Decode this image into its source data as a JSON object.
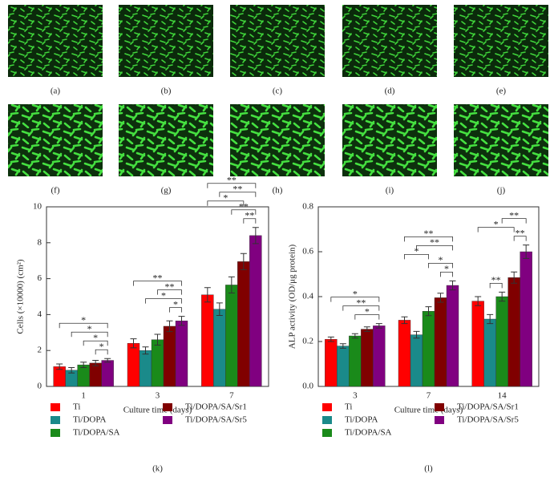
{
  "panels": [
    "(a)",
    "(b)",
    "(c)",
    "(d)",
    "(e)",
    "(f)",
    "(g)",
    "(h)",
    "(i)",
    "(j)"
  ],
  "chart_data": [
    {
      "type": "bar",
      "caption": "(k)",
      "ylabel": "Cells (×10000) (cm²)",
      "xlabel": "Culture time (days)",
      "categories": [
        "1",
        "3",
        "7"
      ],
      "ylim": [
        0,
        10
      ],
      "yticks": [
        0,
        2,
        4,
        6,
        8,
        10
      ],
      "series": [
        {
          "name": "Ti",
          "color": "#ff0000",
          "values": [
            1.1,
            2.4,
            5.1
          ],
          "errors": [
            0.15,
            0.25,
            0.4
          ]
        },
        {
          "name": "Ti/DOPA",
          "color": "#1a8a8a",
          "values": [
            0.9,
            2.0,
            4.3
          ],
          "errors": [
            0.15,
            0.2,
            0.35
          ]
        },
        {
          "name": "Ti/DOPA/SA",
          "color": "#1a8a1a",
          "values": [
            1.2,
            2.6,
            5.65
          ],
          "errors": [
            0.15,
            0.3,
            0.45
          ]
        },
        {
          "name": "Ti/DOPA/SA/Sr1",
          "color": "#800000",
          "values": [
            1.3,
            3.35,
            6.95
          ],
          "errors": [
            0.15,
            0.3,
            0.45
          ]
        },
        {
          "name": "Ti/DOPA/SA/Sr5",
          "color": "#800080",
          "values": [
            1.45,
            3.65,
            8.4
          ],
          "errors": [
            0.1,
            0.25,
            0.45
          ]
        }
      ],
      "significance": [
        {
          "category": "1",
          "between": [
            "Ti/DOPA/SA/Sr1",
            "Ti/DOPA/SA/Sr5"
          ],
          "label": "*"
        },
        {
          "category": "1",
          "between": [
            "Ti/DOPA/SA",
            "Ti/DOPA/SA/Sr5"
          ],
          "label": "*"
        },
        {
          "category": "1",
          "between": [
            "Ti/DOPA",
            "Ti/DOPA/SA/Sr5"
          ],
          "label": "*"
        },
        {
          "category": "1",
          "between": [
            "Ti",
            "Ti/DOPA/SA/Sr5"
          ],
          "label": "*"
        },
        {
          "category": "3",
          "between": [
            "Ti/DOPA/SA/Sr1",
            "Ti/DOPA/SA/Sr5"
          ],
          "label": "*"
        },
        {
          "category": "3",
          "between": [
            "Ti/DOPA",
            "Ti/DOPA/SA/Sr5"
          ],
          "label": "*"
        },
        {
          "category": "3",
          "between": [
            "Ti/DOPA/SA",
            "Ti/DOPA/SA/Sr5"
          ],
          "label": "**"
        },
        {
          "category": "3",
          "between": [
            "Ti",
            "Ti/DOPA/SA/Sr5"
          ],
          "label": "**"
        },
        {
          "category": "7",
          "between": [
            "Ti/DOPA/SA/Sr1",
            "Ti/DOPA/SA/Sr5"
          ],
          "label": "**"
        },
        {
          "category": "7",
          "between": [
            "Ti/DOPA/SA",
            "Ti/DOPA/SA/Sr5"
          ],
          "label": "**"
        },
        {
          "category": "7",
          "between": [
            "Ti",
            "Ti/DOPA/SA/Sr1"
          ],
          "label": "*"
        },
        {
          "category": "7",
          "between": [
            "Ti/DOPA",
            "Ti/DOPA/SA/Sr5"
          ],
          "label": "**"
        },
        {
          "category": "7",
          "between": [
            "Ti",
            "Ti/DOPA/SA/Sr5"
          ],
          "label": "**"
        }
      ]
    },
    {
      "type": "bar",
      "caption": "(l)",
      "ylabel": "ALP activity (OD/μg protein)",
      "xlabel": "Culture time (days)",
      "categories": [
        "3",
        "7",
        "14"
      ],
      "ylim": [
        0,
        0.8
      ],
      "yticks": [
        {
          "value": 0,
          "label": "0.0"
        },
        0.2,
        0.4,
        0.6,
        0.8
      ],
      "series": [
        {
          "name": "Ti",
          "color": "#ff0000",
          "values": [
            0.21,
            0.295,
            0.38
          ],
          "errors": [
            0.01,
            0.015,
            0.02
          ]
        },
        {
          "name": "Ti/DOPA",
          "color": "#1a8a8a",
          "values": [
            0.18,
            0.23,
            0.3
          ],
          "errors": [
            0.01,
            0.015,
            0.02
          ]
        },
        {
          "name": "Ti/DOPA/SA",
          "color": "#1a8a1a",
          "values": [
            0.225,
            0.335,
            0.4
          ],
          "errors": [
            0.01,
            0.02,
            0.02
          ]
        },
        {
          "name": "Ti/DOPA/SA/Sr1",
          "color": "#800000",
          "values": [
            0.255,
            0.395,
            0.485
          ],
          "errors": [
            0.01,
            0.02,
            0.025
          ]
        },
        {
          "name": "Ti/DOPA/SA/Sr5",
          "color": "#800080",
          "values": [
            0.27,
            0.45,
            0.6
          ],
          "errors": [
            0.01,
            0.02,
            0.03
          ]
        }
      ],
      "significance": [
        {
          "category": "3",
          "between": [
            "Ti/DOPA/SA",
            "Ti/DOPA/SA/Sr5"
          ],
          "label": "*"
        },
        {
          "category": "3",
          "between": [
            "Ti/DOPA",
            "Ti/DOPA/SA/Sr5"
          ],
          "label": "**"
        },
        {
          "category": "3",
          "between": [
            "Ti",
            "Ti/DOPA/SA/Sr5"
          ],
          "label": "*"
        },
        {
          "category": "7",
          "between": [
            "Ti/DOPA/SA/Sr1",
            "Ti/DOPA/SA/Sr5"
          ],
          "label": "*"
        },
        {
          "category": "7",
          "between": [
            "Ti/DOPA/SA",
            "Ti/DOPA/SA/Sr5"
          ],
          "label": "*"
        },
        {
          "category": "7",
          "between": [
            "Ti",
            "Ti/DOPA/SA"
          ],
          "label": "*"
        },
        {
          "category": "7",
          "between": [
            "Ti/DOPA",
            "Ti/DOPA/SA/Sr5"
          ],
          "label": "**"
        },
        {
          "category": "7",
          "between": [
            "Ti",
            "Ti/DOPA/SA/Sr5"
          ],
          "label": "**"
        },
        {
          "category": "14",
          "between": [
            "Ti/DOPA/SA/Sr1",
            "Ti/DOPA/SA/Sr5"
          ],
          "label": "**"
        },
        {
          "category": "14",
          "between": [
            "Ti/DOPA",
            "Ti/DOPA/SA"
          ],
          "label": "**"
        },
        {
          "category": "14",
          "between": [
            "Ti",
            "Ti/DOPA/SA/Sr1"
          ],
          "label": "*"
        },
        {
          "category": "14",
          "between": [
            "Ti/DOPA/SA",
            "Ti/DOPA/SA/Sr5"
          ],
          "label": "**"
        }
      ]
    }
  ]
}
